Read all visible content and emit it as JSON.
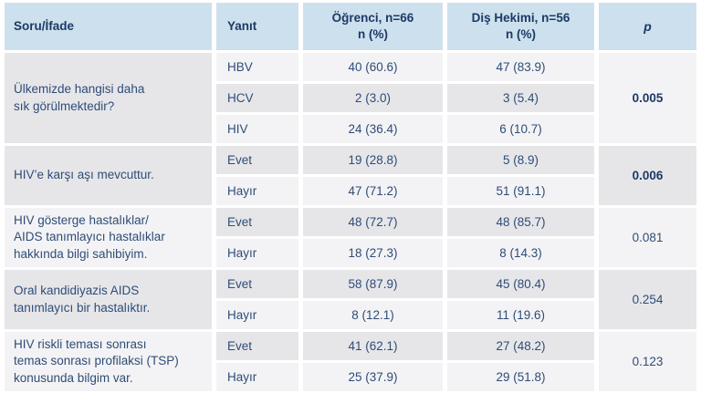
{
  "table": {
    "headers": {
      "question": "Soru/İfade",
      "answer": "Yanıt",
      "student": "Öğrenci, n=66",
      "student_sub": "n (%)",
      "dentist": "Diş Hekimi, n=56",
      "dentist_sub": "n (%)",
      "p": "p"
    },
    "groups": [
      {
        "question": "Ülkemizde hangisi daha\nsık görülmektedir?",
        "p": "0.005",
        "p_bold": true,
        "rows": [
          {
            "answer": "HBV",
            "student": "40 (60.6)",
            "dentist": "47 (83.9)"
          },
          {
            "answer": "HCV",
            "student": "2 (3.0)",
            "dentist": "3 (5.4)"
          },
          {
            "answer": "HIV",
            "student": "24 (36.4)",
            "dentist": "6 (10.7)"
          }
        ]
      },
      {
        "question": "HIV’e karşı aşı mevcuttur.",
        "p": "0.006",
        "p_bold": true,
        "rows": [
          {
            "answer": "Evet",
            "student": "19 (28.8)",
            "dentist": "5 (8.9)"
          },
          {
            "answer": "Hayır",
            "student": "47 (71.2)",
            "dentist": "51 (91.1)"
          }
        ]
      },
      {
        "question": "HIV gösterge hastalıklar/\nAIDS tanımlayıcı hastalıklar\nhakkında bilgi sahibiyim.",
        "p": "0.081",
        "p_bold": false,
        "rows": [
          {
            "answer": "Evet",
            "student": "48 (72.7)",
            "dentist": "48 (85.7)"
          },
          {
            "answer": "Hayır",
            "student": "18 (27.3)",
            "dentist": "8 (14.3)"
          }
        ]
      },
      {
        "question": "Oral kandidiyazis AIDS\ntanımlayıcı bir hastalıktır.",
        "p": "0.254",
        "p_bold": false,
        "rows": [
          {
            "answer": "Evet",
            "student": "58 (87.9)",
            "dentist": "45 (80.4)"
          },
          {
            "answer": "Hayır",
            "student": "8 (12.1)",
            "dentist": "11 (19.6)"
          }
        ]
      },
      {
        "question": "HIV riskli teması sonrası\ntemas sonrası profilaksi (TSP)\nkonusunda bilgim var.",
        "p": "0.123",
        "p_bold": false,
        "rows": [
          {
            "answer": "Evet",
            "student": "41 (62.1)",
            "dentist": "27 (48.2)"
          },
          {
            "answer": "Hayır",
            "student": "25 (37.9)",
            "dentist": "29 (51.8)"
          }
        ]
      }
    ]
  },
  "colors": {
    "header_bg": "#cde0ed",
    "header_text": "#1c3a66",
    "body_text": "#2f4c77",
    "stripe_light": "#f3f3f5",
    "stripe_gray": "#e6e6e9",
    "gap": "#ffffff"
  }
}
